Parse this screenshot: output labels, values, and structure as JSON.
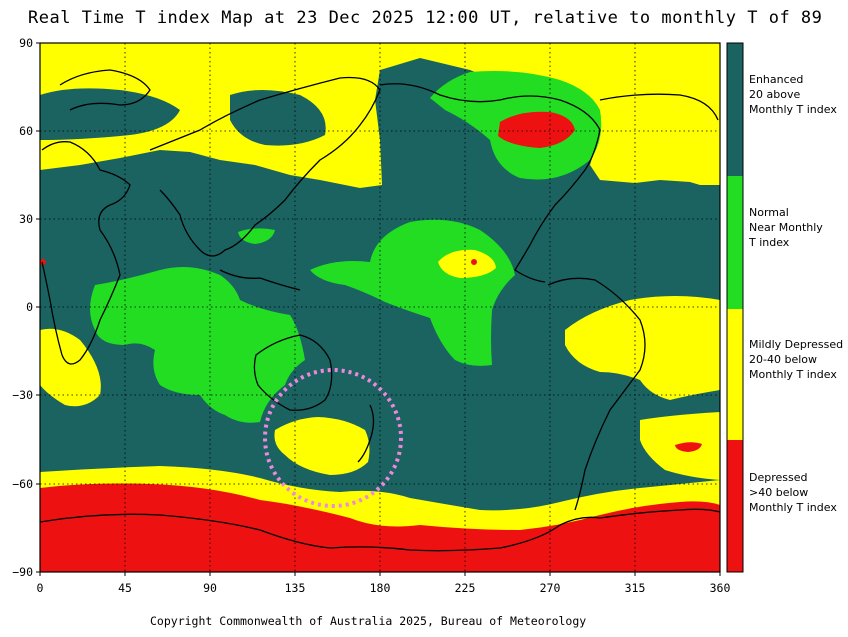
{
  "title": "Real Time T index Map at 23 Dec 2025 12:00 UT, relative to monthly T of 89",
  "copyright": "Copyright Commonwealth of Australia 2025, Bureau of Meteorology",
  "axes": {
    "y_ticks": [
      "90",
      "60",
      "30",
      "0",
      "−30",
      "−60",
      "−90"
    ],
    "x_ticks": [
      "0",
      "45",
      "90",
      "135",
      "180",
      "225",
      "270",
      "315",
      "360"
    ]
  },
  "legend": [
    {
      "label": "Enhanced\n20 above\nMonthly T index",
      "color": "#1a6361"
    },
    {
      "label": "Normal\nNear Monthly\nT index",
      "color": "#22dd22"
    },
    {
      "label": "Mildly Depressed\n20-40 below\nMonthly T index",
      "color": "#ffff00"
    },
    {
      "label": "Depressed\n>40 below\nMonthly T index",
      "color": "#ee1111"
    }
  ],
  "colors": {
    "enhanced": "#1a6361",
    "normal": "#22dd22",
    "mildly_depressed": "#ffff00",
    "depressed": "#ee1111",
    "highlight_circle": "#ee88dd"
  }
}
